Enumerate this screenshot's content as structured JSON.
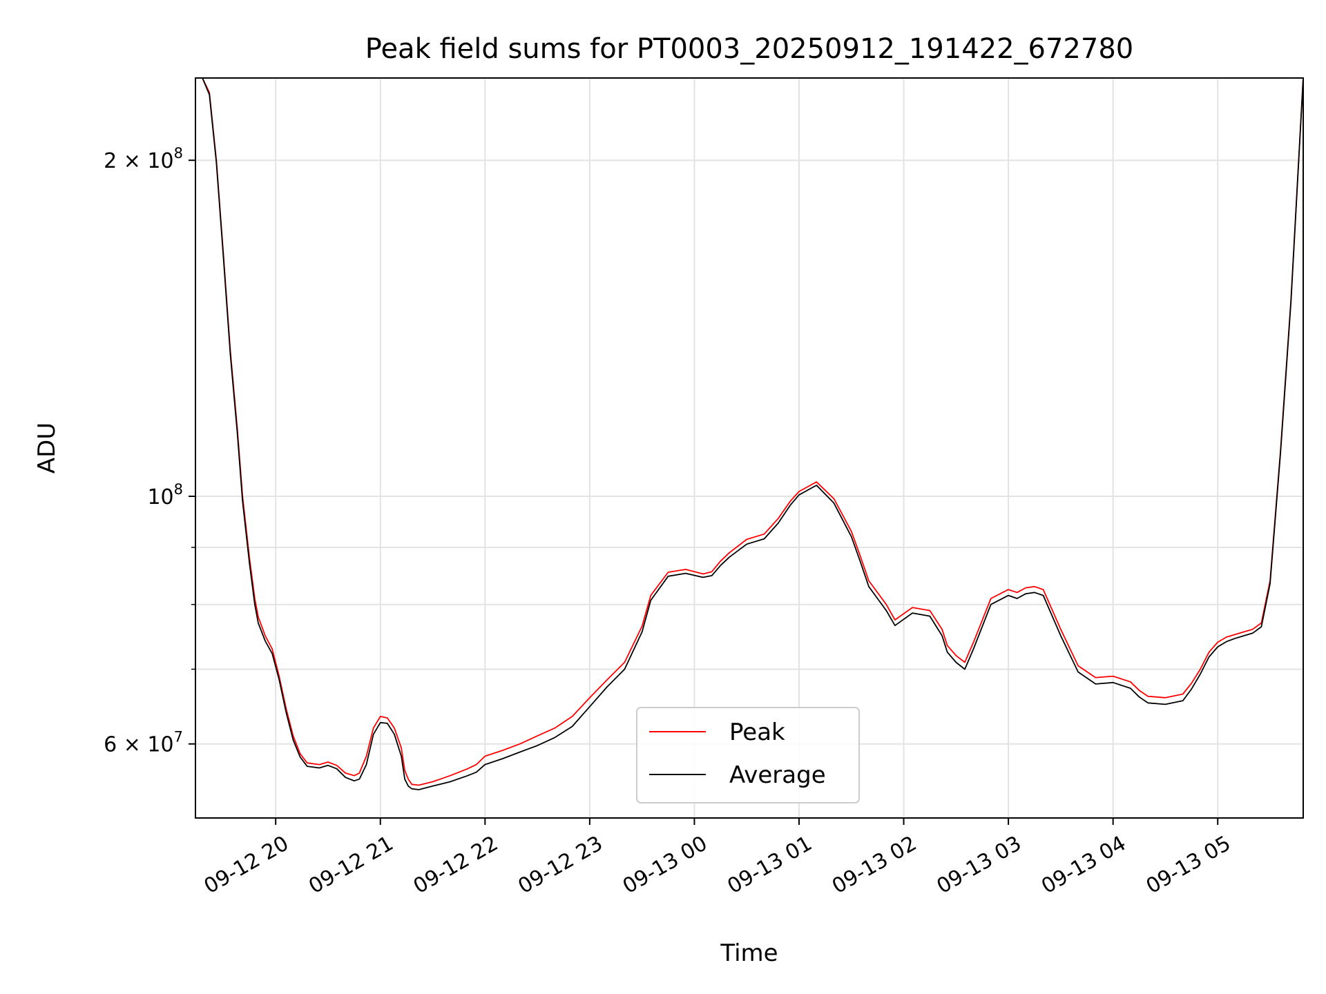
{
  "chart_data": {
    "type": "line",
    "title": "Peak field sums for PT0003_20250912_191422_672780",
    "xlabel": "Time",
    "ylabel": "ADU",
    "yscale": "log",
    "grid": true,
    "legend_position": "lower-center",
    "xlim": [
      "2025-09-12 19:14",
      "2025-09-13 05:49"
    ],
    "ylim": [
      51500000,
      237000000
    ],
    "x_ticks": [
      {
        "value": "2025-09-12 20:00",
        "label": "09-12 20"
      },
      {
        "value": "2025-09-12 21:00",
        "label": "09-12 21"
      },
      {
        "value": "2025-09-12 22:00",
        "label": "09-12 22"
      },
      {
        "value": "2025-09-12 23:00",
        "label": "09-12 23"
      },
      {
        "value": "2025-09-13 00:00",
        "label": "09-13 00"
      },
      {
        "value": "2025-09-13 01:00",
        "label": "09-13 01"
      },
      {
        "value": "2025-09-13 02:00",
        "label": "09-13 02"
      },
      {
        "value": "2025-09-13 03:00",
        "label": "09-13 03"
      },
      {
        "value": "2025-09-13 04:00",
        "label": "09-13 04"
      },
      {
        "value": "2025-09-13 05:00",
        "label": "09-13 05"
      }
    ],
    "y_ticks": [
      {
        "value": 60000000,
        "base": "6 × 10",
        "exp": "7"
      },
      {
        "value": 100000000,
        "base": "10",
        "exp": "8"
      },
      {
        "value": 200000000,
        "base": "2 × 10",
        "exp": "8"
      }
    ],
    "y_minor_ticks": [
      70000000,
      80000000,
      90000000
    ],
    "series": [
      {
        "name": "Peak",
        "color": "#ff0000",
        "x": [
          "2025-09-12 19:14",
          "2025-09-12 19:18",
          "2025-09-12 19:22",
          "2025-09-12 19:26",
          "2025-09-12 19:30",
          "2025-09-12 19:34",
          "2025-09-12 19:38",
          "2025-09-12 19:41",
          "2025-09-12 19:45",
          "2025-09-12 19:48",
          "2025-09-12 19:50",
          "2025-09-12 19:54",
          "2025-09-12 19:58",
          "2025-09-12 20:02",
          "2025-09-12 20:06",
          "2025-09-12 20:10",
          "2025-09-12 20:14",
          "2025-09-12 20:18",
          "2025-09-12 20:25",
          "2025-09-12 20:30",
          "2025-09-12 20:35",
          "2025-09-12 20:40",
          "2025-09-12 20:45",
          "2025-09-12 20:48",
          "2025-09-12 20:52",
          "2025-09-12 20:56",
          "2025-09-12 21:00",
          "2025-09-12 21:04",
          "2025-09-12 21:08",
          "2025-09-12 21:12",
          "2025-09-12 21:14",
          "2025-09-12 21:16",
          "2025-09-12 21:18",
          "2025-09-12 21:22",
          "2025-09-12 21:30",
          "2025-09-12 21:40",
          "2025-09-12 21:50",
          "2025-09-12 21:55",
          "2025-09-12 22:00",
          "2025-09-12 22:10",
          "2025-09-12 22:20",
          "2025-09-12 22:30",
          "2025-09-12 22:40",
          "2025-09-12 22:50",
          "2025-09-12 23:00",
          "2025-09-12 23:10",
          "2025-09-12 23:20",
          "2025-09-12 23:30",
          "2025-09-12 23:35",
          "2025-09-12 23:45",
          "2025-09-12 23:55",
          "2025-09-13 00:05",
          "2025-09-13 00:10",
          "2025-09-13 00:15",
          "2025-09-13 00:20",
          "2025-09-13 00:30",
          "2025-09-13 00:40",
          "2025-09-13 00:48",
          "2025-09-13 00:55",
          "2025-09-13 01:00",
          "2025-09-13 01:10",
          "2025-09-13 01:20",
          "2025-09-13 01:30",
          "2025-09-13 01:35",
          "2025-09-13 01:40",
          "2025-09-13 01:50",
          "2025-09-13 01:55",
          "2025-09-13 02:05",
          "2025-09-13 02:15",
          "2025-09-13 02:22",
          "2025-09-13 02:25",
          "2025-09-13 02:30",
          "2025-09-13 02:35",
          "2025-09-13 02:40",
          "2025-09-13 02:50",
          "2025-09-13 03:00",
          "2025-09-13 03:05",
          "2025-09-13 03:10",
          "2025-09-13 03:15",
          "2025-09-13 03:20",
          "2025-09-13 03:30",
          "2025-09-13 03:40",
          "2025-09-13 03:50",
          "2025-09-13 04:00",
          "2025-09-13 04:10",
          "2025-09-13 04:15",
          "2025-09-13 04:20",
          "2025-09-13 04:30",
          "2025-09-13 04:40",
          "2025-09-13 04:45",
          "2025-09-13 04:50",
          "2025-09-13 04:55",
          "2025-09-13 05:00",
          "2025-09-13 05:05",
          "2025-09-13 05:10",
          "2025-09-13 05:15",
          "2025-09-13 05:20",
          "2025-09-13 05:25",
          "2025-09-13 05:30",
          "2025-09-13 05:36",
          "2025-09-13 05:42",
          "2025-09-13 05:49"
        ],
        "values": [
          237000000,
          237000000,
          230000000,
          200000000,
          165000000,
          135000000,
          115000000,
          100000000,
          88000000,
          81000000,
          78000000,
          75000000,
          73000000,
          69000000,
          64500000,
          61000000,
          58800000,
          57700000,
          57500000,
          57800000,
          57400000,
          56500000,
          56200000,
          56500000,
          58500000,
          62000000,
          63500000,
          63300000,
          62000000,
          59500000,
          56800000,
          55800000,
          55200000,
          55100000,
          55500000,
          56200000,
          57000000,
          57500000,
          58500000,
          59200000,
          60000000,
          61000000,
          62000000,
          63500000,
          66000000,
          68500000,
          71000000,
          76500000,
          81500000,
          85500000,
          86000000,
          85200000,
          85600000,
          87500000,
          89000000,
          91500000,
          92500000,
          95500000,
          99000000,
          101000000,
          103000000,
          99500000,
          93000000,
          88500000,
          84000000,
          80000000,
          77500000,
          79500000,
          79000000,
          76000000,
          73500000,
          72000000,
          71000000,
          74000000,
          81000000,
          82500000,
          82000000,
          82800000,
          83000000,
          82500000,
          76000000,
          70500000,
          68800000,
          69000000,
          68200000,
          67000000,
          66200000,
          66000000,
          66500000,
          68000000,
          70000000,
          72500000,
          74000000,
          74800000,
          75200000,
          75600000,
          76000000,
          77000000,
          84000000,
          110000000,
          150000000,
          237000000
        ]
      },
      {
        "name": "Average",
        "color": "#000000",
        "x": [
          "2025-09-12 19:14",
          "2025-09-12 19:18",
          "2025-09-12 19:22",
          "2025-09-12 19:26",
          "2025-09-12 19:30",
          "2025-09-12 19:34",
          "2025-09-12 19:38",
          "2025-09-12 19:41",
          "2025-09-12 19:45",
          "2025-09-12 19:48",
          "2025-09-12 19:50",
          "2025-09-12 19:54",
          "2025-09-12 19:58",
          "2025-09-12 20:02",
          "2025-09-12 20:06",
          "2025-09-12 20:10",
          "2025-09-12 20:14",
          "2025-09-12 20:18",
          "2025-09-12 20:25",
          "2025-09-12 20:30",
          "2025-09-12 20:35",
          "2025-09-12 20:40",
          "2025-09-12 20:45",
          "2025-09-12 20:48",
          "2025-09-12 20:52",
          "2025-09-12 20:56",
          "2025-09-12 21:00",
          "2025-09-12 21:04",
          "2025-09-12 21:08",
          "2025-09-12 21:12",
          "2025-09-12 21:14",
          "2025-09-12 21:16",
          "2025-09-12 21:18",
          "2025-09-12 21:22",
          "2025-09-12 21:30",
          "2025-09-12 21:40",
          "2025-09-12 21:50",
          "2025-09-12 21:55",
          "2025-09-12 22:00",
          "2025-09-12 22:10",
          "2025-09-12 22:20",
          "2025-09-12 22:30",
          "2025-09-12 22:40",
          "2025-09-12 22:50",
          "2025-09-12 23:00",
          "2025-09-12 23:10",
          "2025-09-12 23:20",
          "2025-09-12 23:30",
          "2025-09-12 23:35",
          "2025-09-12 23:45",
          "2025-09-12 23:55",
          "2025-09-13 00:05",
          "2025-09-13 00:10",
          "2025-09-13 00:15",
          "2025-09-13 00:20",
          "2025-09-13 00:30",
          "2025-09-13 00:40",
          "2025-09-13 00:48",
          "2025-09-13 00:55",
          "2025-09-13 01:00",
          "2025-09-13 01:10",
          "2025-09-13 01:20",
          "2025-09-13 01:30",
          "2025-09-13 01:35",
          "2025-09-13 01:40",
          "2025-09-13 01:50",
          "2025-09-13 01:55",
          "2025-09-13 02:05",
          "2025-09-13 02:15",
          "2025-09-13 02:22",
          "2025-09-13 02:25",
          "2025-09-13 02:30",
          "2025-09-13 02:35",
          "2025-09-13 02:40",
          "2025-09-13 02:50",
          "2025-09-13 03:00",
          "2025-09-13 03:05",
          "2025-09-13 03:10",
          "2025-09-13 03:15",
          "2025-09-13 03:20",
          "2025-09-13 03:30",
          "2025-09-13 03:40",
          "2025-09-13 03:50",
          "2025-09-13 04:00",
          "2025-09-13 04:10",
          "2025-09-13 04:15",
          "2025-09-13 04:20",
          "2025-09-13 04:30",
          "2025-09-13 04:40",
          "2025-09-13 04:45",
          "2025-09-13 04:50",
          "2025-09-13 04:55",
          "2025-09-13 05:00",
          "2025-09-13 05:05",
          "2025-09-13 05:10",
          "2025-09-13 05:15",
          "2025-09-13 05:20",
          "2025-09-13 05:25",
          "2025-09-13 05:30",
          "2025-09-13 05:36",
          "2025-09-13 05:42",
          "2025-09-13 05:49"
        ],
        "values": [
          237000000,
          237000000,
          229000000,
          199000000,
          164000000,
          134000000,
          114000000,
          99000000,
          87000000,
          80000000,
          77000000,
          74200000,
          72300000,
          68500000,
          64000000,
          60500000,
          58400000,
          57300000,
          57100000,
          57400000,
          57000000,
          56000000,
          55600000,
          55800000,
          57500000,
          61200000,
          62700000,
          62600000,
          61200000,
          58500000,
          55800000,
          55000000,
          54700000,
          54600000,
          55000000,
          55500000,
          56200000,
          56600000,
          57500000,
          58200000,
          59000000,
          59800000,
          60800000,
          62200000,
          64800000,
          67500000,
          70000000,
          75600000,
          80700000,
          84800000,
          85300000,
          84600000,
          84900000,
          86700000,
          88200000,
          90600000,
          91600000,
          94600000,
          98200000,
          100300000,
          102300000,
          98600000,
          92000000,
          87500000,
          83000000,
          79000000,
          76600000,
          78600000,
          78100000,
          75000000,
          72500000,
          71000000,
          70000000,
          73000000,
          80000000,
          81500000,
          81000000,
          81800000,
          82000000,
          81500000,
          75000000,
          69600000,
          67900000,
          68100000,
          67300000,
          66100000,
          65300000,
          65100000,
          65600000,
          67200000,
          69300000,
          71800000,
          73300000,
          74100000,
          74600000,
          75000000,
          75400000,
          76400000,
          83500000,
          109500000,
          149500000,
          237000000
        ]
      }
    ]
  }
}
